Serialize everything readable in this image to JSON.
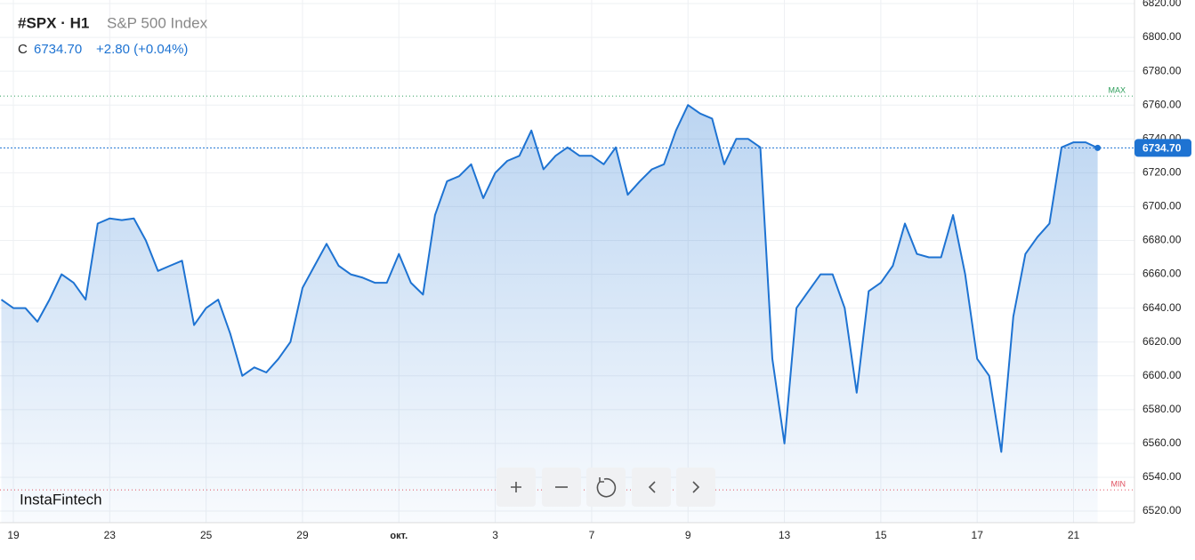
{
  "header": {
    "symbol": "#SPX · H1",
    "name": "S&P 500 Index",
    "close_label": "C",
    "close": "6734.70",
    "change": "+2.80 (+0.04%)"
  },
  "watermark": "InstaFintech",
  "chart_data": {
    "type": "area",
    "color": "#1e73d2",
    "categories": [
      null,
      "19",
      null,
      null,
      null,
      null,
      null,
      null,
      null,
      "23",
      null,
      null,
      null,
      null,
      null,
      null,
      null,
      "25",
      null,
      null,
      null,
      null,
      null,
      null,
      null,
      "29",
      null,
      null,
      null,
      null,
      null,
      null,
      null,
      "окт.",
      null,
      null,
      null,
      null,
      null,
      null,
      null,
      "3",
      null,
      null,
      null,
      null,
      null,
      null,
      null,
      "7",
      null,
      null,
      null,
      null,
      null,
      null,
      null,
      "9",
      null,
      null,
      null,
      null,
      null,
      null,
      null,
      "13",
      null,
      null,
      null,
      null,
      null,
      null,
      null,
      "15",
      null,
      null,
      null,
      null,
      null,
      null,
      null,
      "17",
      null,
      null,
      null,
      null,
      null,
      null,
      null,
      "21",
      null,
      null
    ],
    "values": [
      6645,
      6640,
      6640,
      6632,
      6645,
      6660,
      6655,
      6645,
      6690,
      6693,
      6692,
      6693,
      6680,
      6662,
      6665,
      6668,
      6630,
      6640,
      6645,
      6625,
      6600,
      6605,
      6602,
      6610,
      6620,
      6652,
      6665,
      6678,
      6665,
      6660,
      6658,
      6655,
      6655,
      6672,
      6655,
      6648,
      6695,
      6715,
      6718,
      6725,
      6705,
      6720,
      6727,
      6730,
      6745,
      6722,
      6730,
      6735,
      6730,
      6730,
      6725,
      6735,
      6707,
      6715,
      6722,
      6725,
      6745,
      6760,
      6755,
      6752,
      6725,
      6740,
      6740,
      6735,
      6610,
      6560,
      6640,
      6650,
      6660,
      6660,
      6640,
      6590,
      6650,
      6655,
      6665,
      6690,
      6672,
      6670,
      6670,
      6695,
      6660,
      6610,
      6600,
      6555,
      6635,
      6672,
      6682,
      6690,
      6735,
      6738,
      6738,
      6734.7
    ],
    "ylim": [
      6513.2,
      6822.1
    ],
    "yticks": [
      {
        "value": 6520,
        "label": "6520.00"
      },
      {
        "value": 6540,
        "label": "6540.00"
      },
      {
        "value": 6560,
        "label": "6560.00"
      },
      {
        "value": 6580,
        "label": "6580.00"
      },
      {
        "value": 6600,
        "label": "6600.00"
      },
      {
        "value": 6620,
        "label": "6620.00"
      },
      {
        "value": 6640,
        "label": "6640.00"
      },
      {
        "value": 6660,
        "label": "6660.00"
      },
      {
        "value": 6680,
        "label": "6680.00"
      },
      {
        "value": 6700,
        "label": "6700.00"
      },
      {
        "value": 6720,
        "label": "6720.00"
      },
      {
        "value": 6740,
        "label": "6740.00"
      },
      {
        "value": 6760,
        "label": "6760.00"
      },
      {
        "value": 6780,
        "label": "6780.00"
      },
      {
        "value": 6800,
        "label": "6800.00"
      },
      {
        "value": 6820,
        "label": "6820.00"
      }
    ],
    "grid": true,
    "max_line": {
      "value": 6765.3,
      "label": "MAX",
      "color": "#2e9e5b"
    },
    "min_line": {
      "value": 6532.6,
      "label": "MIN",
      "color": "#e05060"
    },
    "last_price": {
      "value": 6734.7,
      "label": "6734.70"
    }
  }
}
